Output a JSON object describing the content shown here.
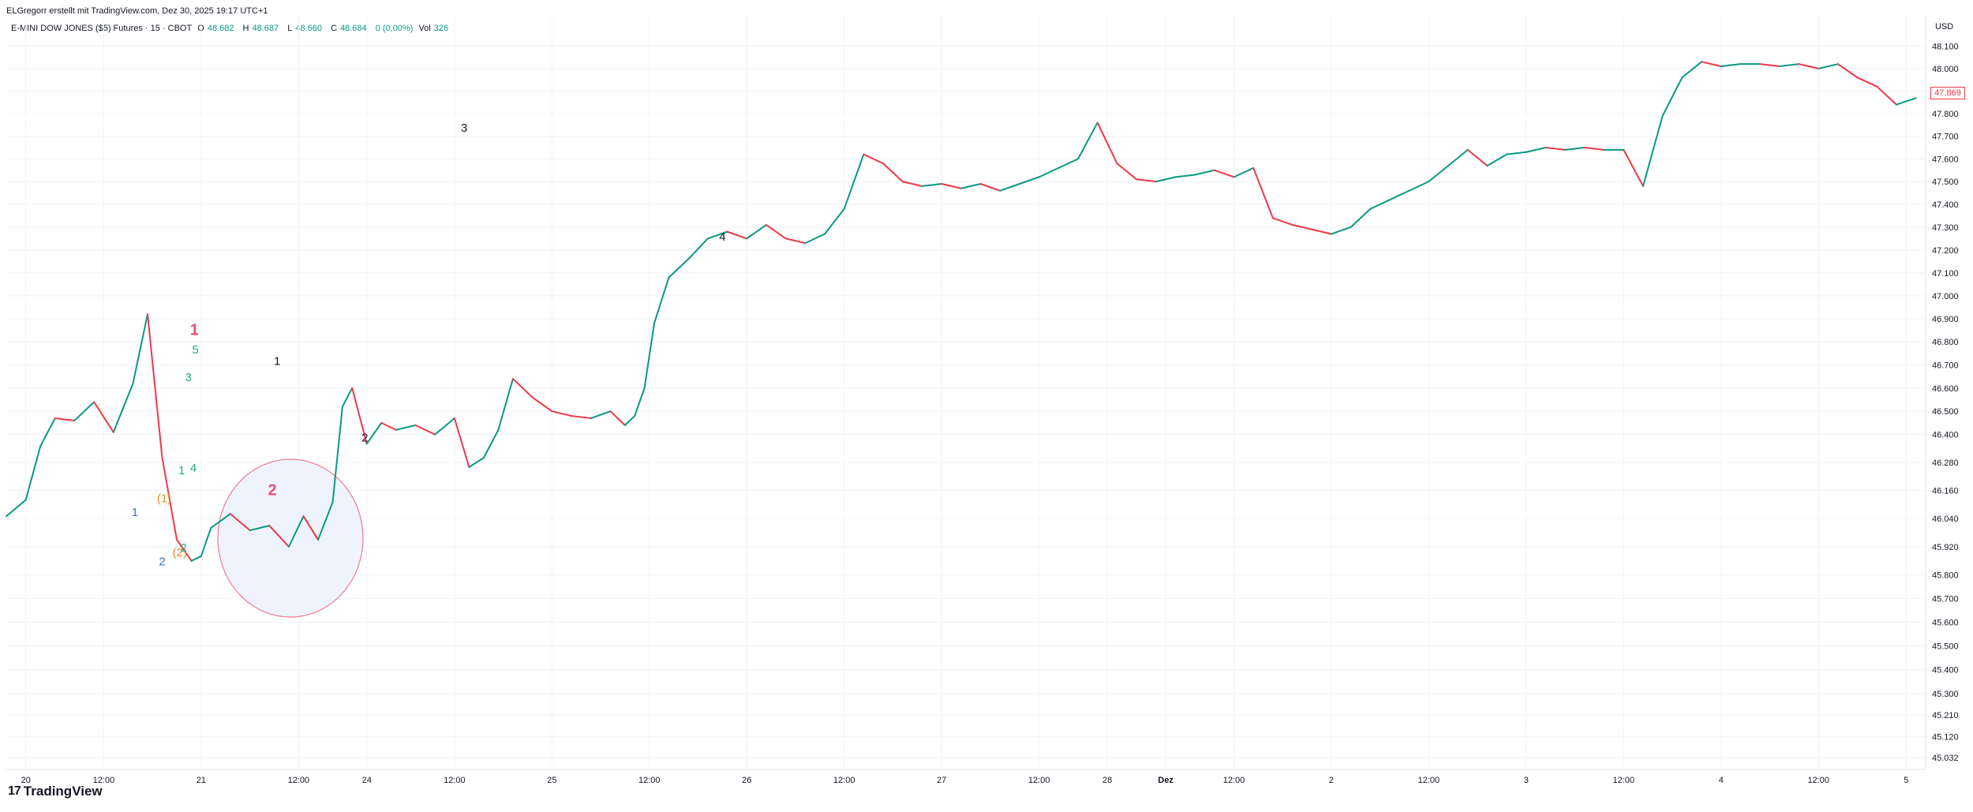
{
  "header": {
    "credit": "ELGregorr erstellt mit TradingView.com, Dez 30, 2025 19:17 UTC+1",
    "symbol": "E-MINI DOW JONES ($5) Futures · 15 · CBOT",
    "open_label": "O",
    "open": "48.682",
    "high_label": "H",
    "high": "48.687",
    "low_label": "L",
    "low": "48.660",
    "close_label": "C",
    "close": "48.684",
    "change": "0 (0,00%)",
    "vol_label": "Vol",
    "vol": "326"
  },
  "axis": {
    "currency": "USD",
    "last_price": "47.869"
  },
  "brand": {
    "logo_text": "TradingView",
    "logo_mark": "17"
  },
  "colors": {
    "up": "#089981",
    "down": "#f23645",
    "grid": "#f0f3fa",
    "circle_fill": "#eef3fd",
    "circle_stroke": "#f27a95",
    "label_blue": "#3d6fc4",
    "label_orange": "#f08d1e",
    "label_pink": "#e94e77",
    "label_green": "#22a883",
    "label_black": "#131722"
  },
  "chart_data": {
    "type": "line",
    "y_scale": "log",
    "ylim": [
      45032,
      48200
    ],
    "y_ticks": [
      "48.100",
      "48.000",
      "47.900",
      "47.800",
      "47.700",
      "47.600",
      "47.500",
      "47.400",
      "47.300",
      "47.200",
      "47.100",
      "47.000",
      "46.900",
      "46.800",
      "46.700",
      "46.600",
      "46.500",
      "46.400",
      "46.280",
      "46.160",
      "46.040",
      "45.920",
      "45.800",
      "45.700",
      "45.600",
      "45.500",
      "45.400",
      "45.300",
      "45.210",
      "45.120",
      "45.032"
    ],
    "y_tick_values": [
      48100,
      48000,
      47900,
      47800,
      47700,
      47600,
      47500,
      47400,
      47300,
      47200,
      47100,
      47000,
      46900,
      46800,
      46700,
      46600,
      46500,
      46400,
      46280,
      46160,
      46040,
      45920,
      45800,
      45700,
      45600,
      45500,
      45400,
      45300,
      45210,
      45120,
      45032
    ],
    "x_ticks": [
      "20",
      "12:00",
      "21",
      "12:00",
      "24",
      "12:00",
      "25",
      "12:00",
      "26",
      "12:00",
      "27",
      "12:00",
      "28",
      "Dez",
      "12:00",
      "2",
      "12:00",
      "3",
      "12:00",
      "4",
      "12:00",
      "5"
    ],
    "x_tick_values": [
      0.2,
      1,
      2,
      3,
      3.7,
      4.6,
      5.6,
      6.6,
      7.6,
      8.6,
      9.6,
      10.6,
      11.3,
      11.9,
      12.6,
      13.6,
      14.6,
      15.6,
      16.6,
      17.6,
      18.6,
      19.5
    ],
    "x": [
      0,
      0.2,
      0.35,
      0.5,
      0.7,
      0.9,
      1.1,
      1.3,
      1.45,
      1.6,
      1.75,
      1.9,
      2.0,
      2.1,
      2.3,
      2.5,
      2.7,
      2.9,
      3.05,
      3.2,
      3.35,
      3.45,
      3.55,
      3.7,
      3.85,
      4.0,
      4.2,
      4.4,
      4.6,
      4.75,
      4.9,
      5.05,
      5.2,
      5.4,
      5.6,
      5.8,
      6.0,
      6.2,
      6.35,
      6.45,
      6.55,
      6.65,
      6.8,
      7.0,
      7.2,
      7.4,
      7.6,
      7.8,
      8.0,
      8.2,
      8.4,
      8.6,
      8.8,
      9.0,
      9.2,
      9.4,
      9.6,
      9.8,
      10.0,
      10.2,
      10.4,
      10.6,
      10.8,
      11.0,
      11.2,
      11.4,
      11.6,
      11.8,
      12.0,
      12.2,
      12.4,
      12.6,
      12.8,
      13.0,
      13.2,
      13.4,
      13.6,
      13.8,
      14.0,
      14.2,
      14.4,
      14.6,
      14.8,
      15.0,
      15.2,
      15.4,
      15.6,
      15.8,
      16.0,
      16.2,
      16.4,
      16.6,
      16.8,
      17.0,
      17.2,
      17.4,
      17.6,
      17.8,
      18.0,
      18.2,
      18.4,
      18.6,
      18.8,
      19.0,
      19.2,
      19.4,
      19.6
    ],
    "values": [
      46050,
      46120,
      46350,
      46470,
      46460,
      46540,
      46410,
      46620,
      46920,
      46300,
      45950,
      45860,
      45880,
      46000,
      46060,
      45990,
      46010,
      45920,
      46050,
      45950,
      46110,
      46520,
      46600,
      46360,
      46450,
      46420,
      46440,
      46400,
      46470,
      46260,
      46300,
      46420,
      46640,
      46560,
      46500,
      46480,
      46470,
      46500,
      46440,
      46480,
      46600,
      46880,
      47080,
      47160,
      47250,
      47280,
      47250,
      47310,
      47250,
      47230,
      47270,
      47380,
      47620,
      47580,
      47500,
      47480,
      47490,
      47470,
      47490,
      47460,
      47490,
      47520,
      47560,
      47600,
      47760,
      47580,
      47510,
      47500,
      47520,
      47530,
      47550,
      47520,
      47560,
      47340,
      47310,
      47290,
      47270,
      47300,
      47380,
      47420,
      47460,
      47500,
      47570,
      47640,
      47570,
      47620,
      47630,
      47650,
      47640,
      47650,
      47640,
      47640,
      47480,
      47790,
      47960,
      48030,
      48010,
      48020,
      48020,
      48010,
      48020,
      48000,
      48020,
      47960,
      47920,
      47840,
      47869
    ],
    "annotations": [
      {
        "text": "1",
        "x": 1.32,
        "y": 46050,
        "color": "label_blue"
      },
      {
        "text": "2",
        "x": 1.6,
        "y": 45840,
        "color": "label_blue"
      },
      {
        "text": "(1)",
        "x": 1.62,
        "y": 46110,
        "color": "label_orange"
      },
      {
        "text": "(2)",
        "x": 1.78,
        "y": 45880,
        "color": "label_orange"
      },
      {
        "text": "1",
        "x": 1.8,
        "y": 46230,
        "color": "label_green"
      },
      {
        "text": "2",
        "x": 1.82,
        "y": 45900,
        "color": "label_green"
      },
      {
        "text": "3",
        "x": 1.87,
        "y": 46630,
        "color": "label_green"
      },
      {
        "text": "4",
        "x": 1.92,
        "y": 46240,
        "color": "label_green"
      },
      {
        "text": "5",
        "x": 1.94,
        "y": 46750,
        "color": "label_green"
      },
      {
        "text": "1",
        "x": 1.93,
        "y": 46830,
        "color": "label_pink"
      },
      {
        "text": "2",
        "x": 2.73,
        "y": 46140,
        "color": "label_pink"
      },
      {
        "text": "1",
        "x": 2.78,
        "y": 46700,
        "color": "label_black"
      },
      {
        "text": "2",
        "x": 3.68,
        "y": 46370,
        "color": "label_black"
      },
      {
        "text": "3",
        "x": 4.7,
        "y": 47720,
        "color": "label_black"
      },
      {
        "text": "4",
        "x": 7.35,
        "y": 47240,
        "color": "label_black"
      }
    ]
  }
}
